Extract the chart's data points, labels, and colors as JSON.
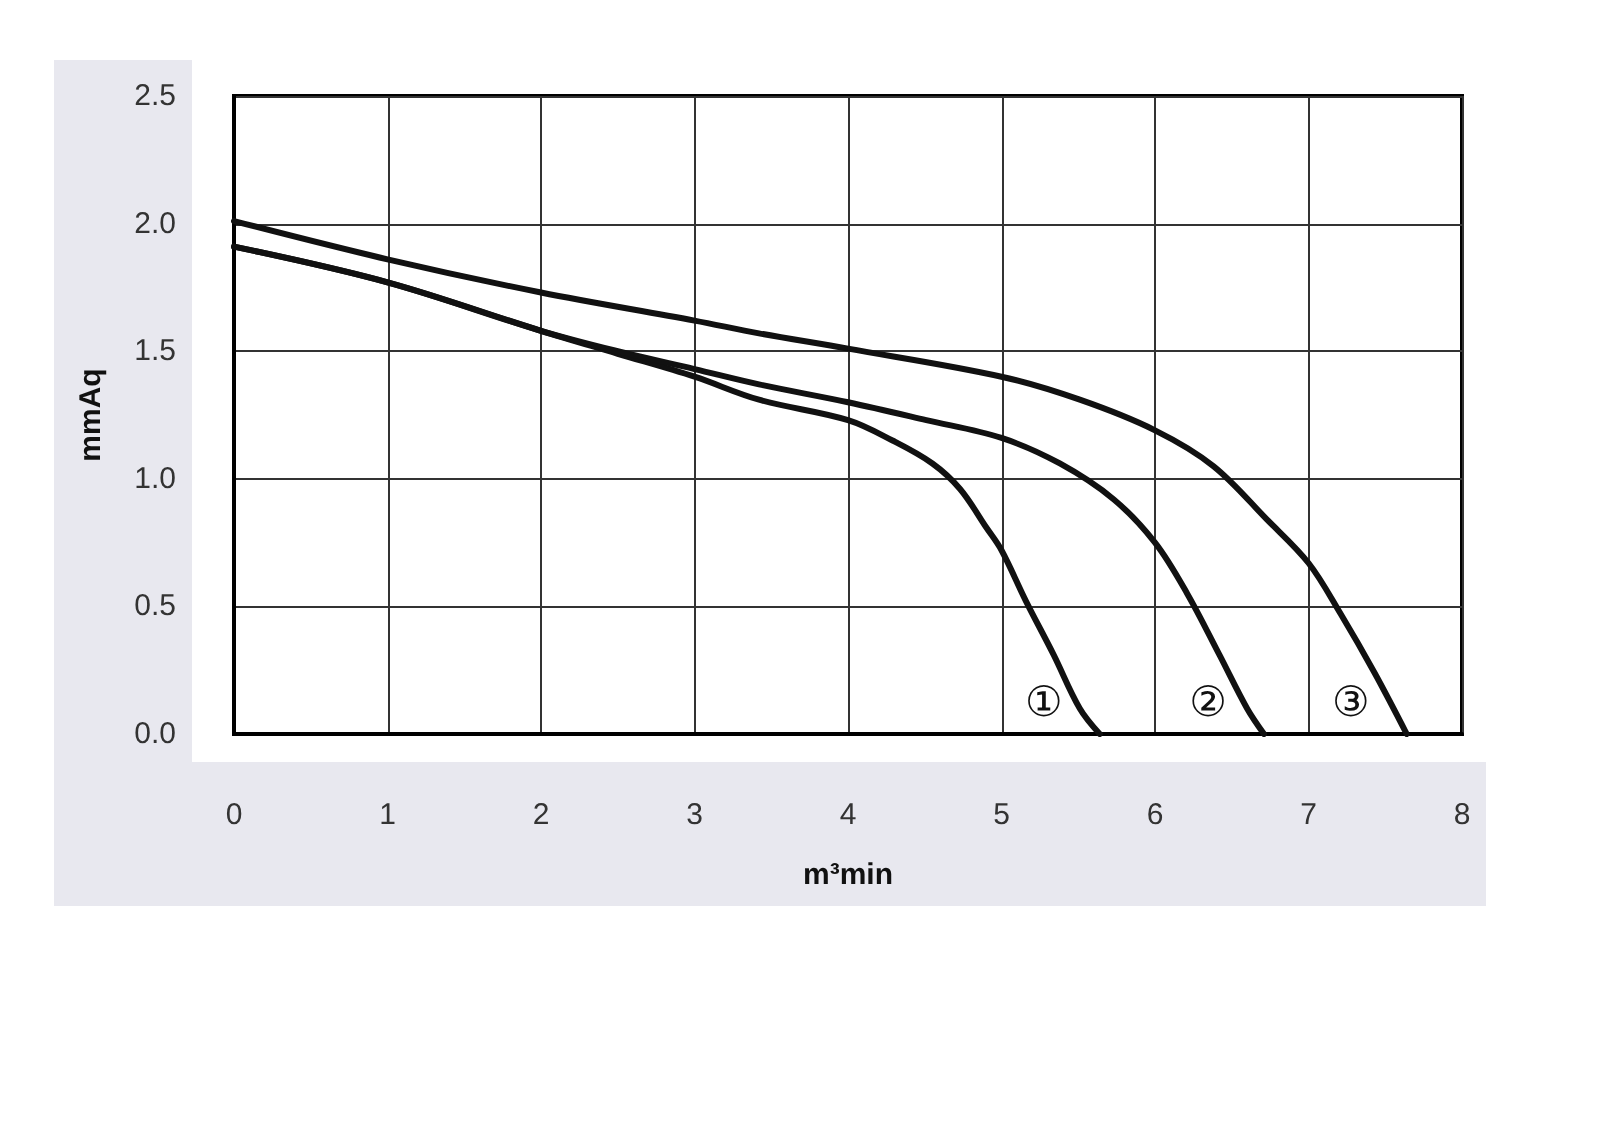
{
  "chart_data": {
    "type": "line",
    "xlabel": "m³min",
    "ylabel": "mmAq",
    "xlim": [
      0,
      8
    ],
    "xticks": [
      0,
      1,
      2,
      3,
      4,
      5,
      6,
      7,
      8
    ],
    "ylim": [
      0,
      2.5
    ],
    "yticks": [
      {
        "value": 0,
        "label": "0.0"
      },
      0.5,
      {
        "value": 1,
        "label": "1.0"
      },
      1.5,
      {
        "value": 2,
        "label": "2.0"
      },
      2.5
    ],
    "grid": true,
    "series": [
      {
        "name": "①",
        "color": "#111111",
        "x": [
          0,
          1,
          2,
          2.5,
          3,
          3.42,
          4,
          4.29,
          4.55,
          4.73,
          4.9,
          5,
          5.16,
          5.34,
          5.51,
          5.64
        ],
        "values": [
          1.91,
          1.77,
          1.58,
          1.49,
          1.4,
          1.31,
          1.23,
          1.15,
          1.06,
          0.96,
          0.81,
          0.72,
          0.52,
          0.31,
          0.1,
          0
        ]
      },
      {
        "name": "②",
        "color": "#111111",
        "x": [
          0,
          1,
          2,
          2.5,
          3,
          3.42,
          4,
          4.51,
          5,
          5.38,
          5.73,
          6,
          6.21,
          6.42,
          6.6,
          6.71
        ],
        "values": [
          1.91,
          1.77,
          1.58,
          1.5,
          1.43,
          1.37,
          1.3,
          1.23,
          1.16,
          1.06,
          0.92,
          0.75,
          0.55,
          0.31,
          0.1,
          0
        ]
      },
      {
        "name": "③",
        "color": "#111111",
        "x": [
          0,
          1,
          2,
          3,
          3.42,
          4,
          5,
          5.51,
          6,
          6.38,
          6.73,
          7,
          7.21,
          7.43,
          7.64
        ],
        "values": [
          2.01,
          1.86,
          1.73,
          1.62,
          1.57,
          1.51,
          1.4,
          1.31,
          1.19,
          1.05,
          0.84,
          0.67,
          0.47,
          0.24,
          0
        ]
      }
    ]
  }
}
